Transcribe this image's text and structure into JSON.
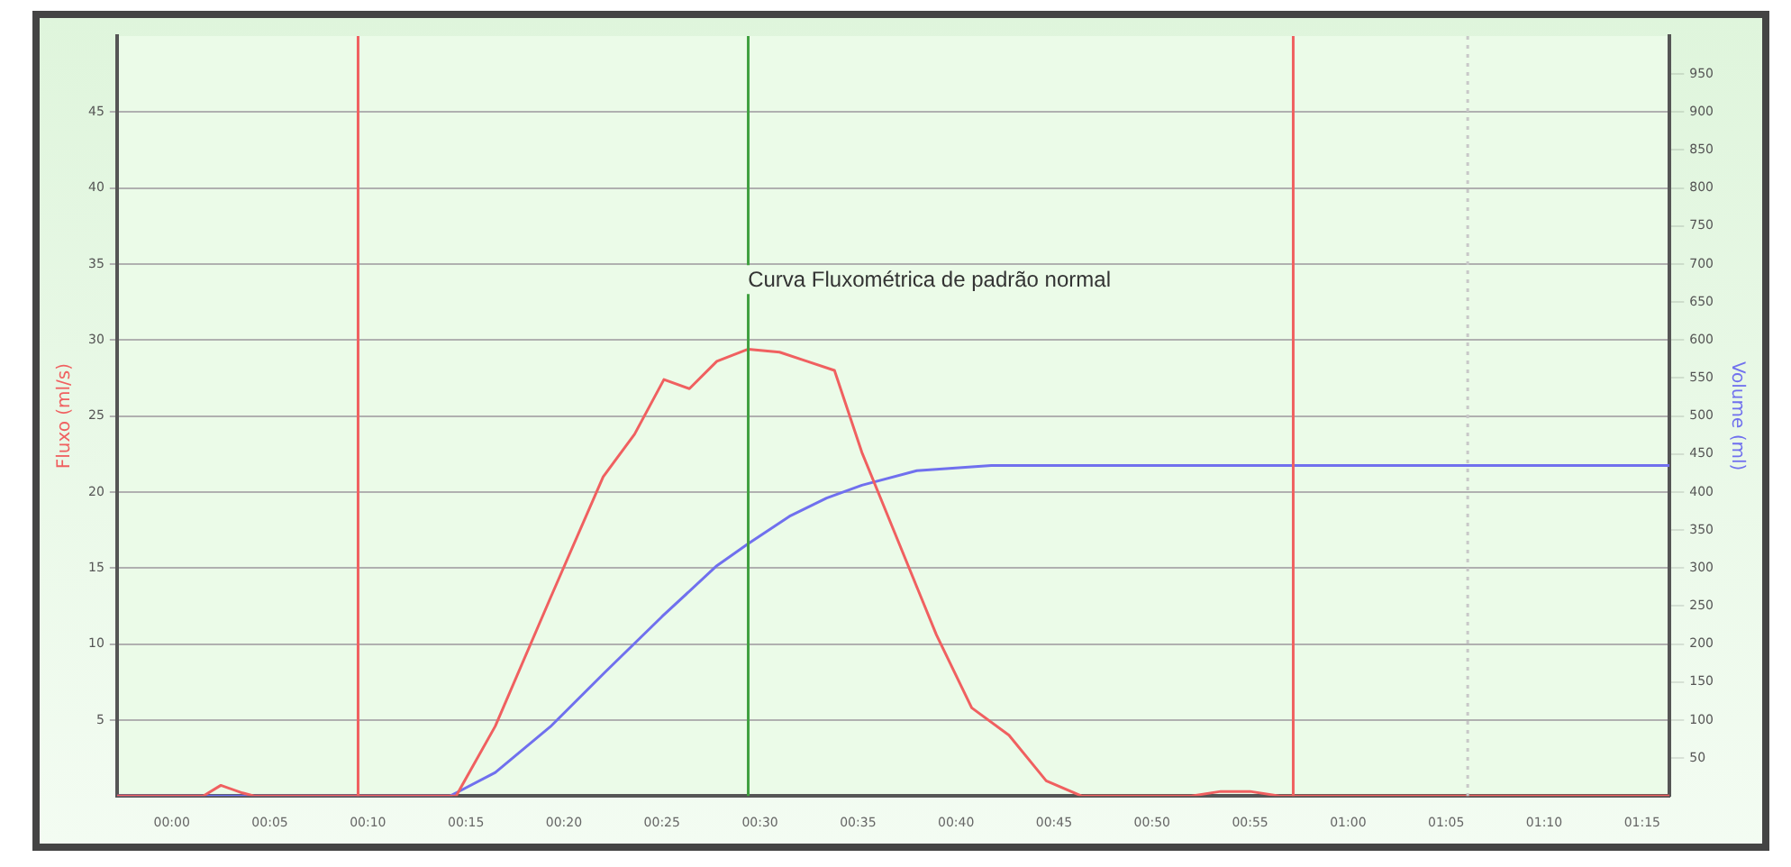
{
  "chart_data": {
    "type": "line",
    "title": "Curva Fluxométrica de padrão normal",
    "ylabel": "Fluxo (ml/s)",
    "y2label": "Volume (ml)",
    "xlim": [
      -2.8,
      76.4
    ],
    "xticks": [
      {
        "value": 0,
        "label": "00:00"
      },
      {
        "value": 5,
        "label": "00:05"
      },
      {
        "value": 10,
        "label": "00:10"
      },
      {
        "value": 15,
        "label": "00:15"
      },
      {
        "value": 20,
        "label": "00:20"
      },
      {
        "value": 25,
        "label": "00:25"
      },
      {
        "value": 30,
        "label": "00:30"
      },
      {
        "value": 35,
        "label": "00:35"
      },
      {
        "value": 40,
        "label": "00:40"
      },
      {
        "value": 45,
        "label": "00:45"
      },
      {
        "value": 50,
        "label": "00:50"
      },
      {
        "value": 55,
        "label": "00:55"
      },
      {
        "value": 60,
        "label": "01:00"
      },
      {
        "value": 65,
        "label": "01:05"
      },
      {
        "value": 70,
        "label": "01:10"
      },
      {
        "value": 75,
        "label": "01:15"
      }
    ],
    "ylim": [
      0,
      50
    ],
    "yticks": [
      5,
      10,
      15,
      20,
      25,
      30,
      35,
      40,
      45
    ],
    "y2lim": [
      0,
      1000
    ],
    "y2ticks": [
      50,
      100,
      150,
      200,
      250,
      300,
      350,
      400,
      450,
      500,
      550,
      600,
      650,
      700,
      750,
      800,
      850,
      900,
      950
    ],
    "grid": "y",
    "legend": false,
    "marker": "none",
    "line_style": "solid",
    "series": [
      {
        "color": "#f06060",
        "x": [
          -2.8,
          1.6,
          2.5,
          3.6,
          4.2,
          14.5,
          16.5,
          19.3,
          22,
          23.6,
          25.1,
          26.4,
          27.8,
          29.4,
          31,
          32.4,
          33.8,
          35.2,
          37.1,
          39,
          40.8,
          42.7,
          44.6,
          46.4,
          52,
          53.5,
          55,
          56.5,
          76.4
        ],
        "values": [
          0,
          0,
          0.7,
          0.2,
          0,
          0,
          4.6,
          13,
          21,
          23.8,
          27.4,
          26.8,
          28.6,
          29.4,
          29.2,
          28.6,
          28,
          22.6,
          16.6,
          10.6,
          5.8,
          4,
          1,
          0,
          0,
          0.3,
          0.3,
          0,
          0
        ]
      },
      {
        "color": "#7070ee",
        "axis": "y2",
        "x": [
          -2.8,
          14.2,
          16.5,
          19.3,
          22.1,
          25,
          27.8,
          29.4,
          31.5,
          33.4,
          35.2,
          38,
          41.8,
          76.4
        ],
        "values": [
          0,
          0,
          31,
          91,
          163,
          236,
          303,
          332,
          368,
          392,
          409,
          428,
          435,
          435
        ]
      }
    ],
    "ref_lines": [
      {
        "axis": "x",
        "value": 9.5,
        "color": "#f06060",
        "line_style": "solid"
      },
      {
        "axis": "x",
        "value": 29.4,
        "color": "#40a040",
        "line_style": "solid"
      },
      {
        "axis": "x",
        "value": 57.2,
        "color": "#f06060",
        "line_style": "solid"
      },
      {
        "axis": "x",
        "value": 66.1,
        "color": "#c8c8c8",
        "line_style": "dotted"
      }
    ]
  }
}
